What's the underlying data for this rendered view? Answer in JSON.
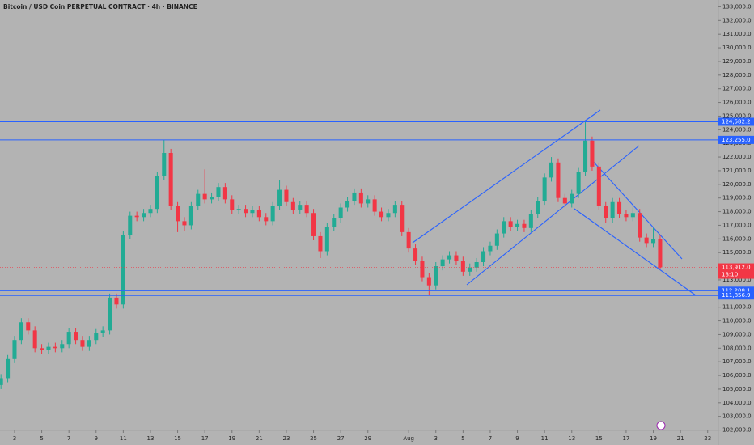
{
  "chart_data": {
    "type": "candlestick",
    "title": "Bitcoin / USD Coin PERPETUAL CONTRACT · 4h · BINANCE",
    "up_color": "#22ab94",
    "down_color": "#f23645",
    "level_color": "#2962ff",
    "last_color": "#f23645",
    "x": [
      2,
      2.5,
      3,
      3.5,
      4,
      4.5,
      5,
      5.5,
      6,
      6.5,
      7,
      7.5,
      8,
      8.5,
      9,
      9.5,
      10,
      10.5,
      11,
      11.5,
      12,
      12.5,
      13,
      13.5,
      14,
      14.5,
      15,
      15.5,
      16,
      16.5,
      17,
      17.5,
      18,
      18.5,
      19,
      19.5,
      20,
      20.5,
      21,
      21.5,
      22,
      22.5,
      23,
      23.5,
      24,
      24.5,
      25,
      25.5,
      26,
      26.5,
      27,
      27.5,
      28,
      28.5,
      29,
      29.5,
      30,
      30.5,
      31,
      31.5,
      32,
      32.5,
      33,
      33.5,
      34,
      34.5,
      35,
      35.5,
      36,
      36.5,
      37,
      37.5,
      38,
      38.5,
      39,
      39.5,
      40,
      40.5,
      41,
      41.5,
      42,
      42.5,
      43,
      43.5,
      44,
      44.5,
      45,
      45.5,
      46,
      46.5,
      47,
      47.5,
      48,
      48.5,
      49,
      49.5,
      50,
      50.5
    ],
    "open": [
      105300,
      105800,
      107200,
      108600,
      109900,
      109300,
      108000,
      107900,
      108100,
      108000,
      108300,
      109200,
      108600,
      108100,
      108600,
      109100,
      109300,
      111700,
      111200,
      116300,
      117700,
      117600,
      117900,
      118200,
      120600,
      122300,
      118400,
      117300,
      117000,
      118400,
      119300,
      118900,
      119100,
      119800,
      118900,
      118100,
      118200,
      117900,
      118100,
      117600,
      117300,
      118400,
      119600,
      118700,
      118100,
      118500,
      117900,
      116200,
      115100,
      116900,
      117500,
      118300,
      118800,
      119400,
      118600,
      118900,
      118000,
      117600,
      117900,
      118500,
      116500,
      115300,
      114400,
      113200,
      112600,
      114000,
      114500,
      114800,
      114400,
      113600,
      113900,
      114300,
      115100,
      115500,
      116400,
      117300,
      116900,
      117100,
      116800,
      117800,
      118800,
      120500,
      121600,
      119000,
      118600,
      119300,
      120900,
      123200,
      121300,
      118400,
      117500,
      118700,
      117800,
      117600,
      117900,
      116100,
      115700,
      116000
    ],
    "high": [
      106100,
      107500,
      108900,
      110200,
      110200,
      109600,
      108300,
      108400,
      108400,
      108600,
      109500,
      109500,
      108900,
      108900,
      109400,
      109600,
      112000,
      112000,
      116600,
      118000,
      118000,
      118200,
      118500,
      120900,
      123255,
      122600,
      118700,
      117600,
      118700,
      119600,
      121100,
      119400,
      120100,
      120100,
      119200,
      118500,
      118500,
      118400,
      118400,
      117900,
      118700,
      120300,
      119900,
      119000,
      118800,
      118800,
      118200,
      116500,
      117200,
      117800,
      118600,
      119100,
      119700,
      119700,
      119200,
      119200,
      118300,
      118200,
      118800,
      118800,
      116800,
      115600,
      114700,
      113500,
      114300,
      114800,
      115100,
      115100,
      114700,
      114200,
      114600,
      115400,
      115800,
      116700,
      117600,
      117600,
      117400,
      117400,
      118100,
      119100,
      120800,
      122000,
      121900,
      119300,
      119600,
      121200,
      124582,
      123500,
      121600,
      118700,
      119000,
      119000,
      118100,
      118300,
      118200,
      116400,
      116800,
      116300
    ],
    "low": [
      105000,
      105500,
      106900,
      108300,
      109000,
      107700,
      107600,
      107600,
      107700,
      107700,
      108000,
      108300,
      107800,
      107800,
      108300,
      108800,
      109000,
      110900,
      110900,
      116000,
      117300,
      117300,
      117600,
      117900,
      120300,
      118100,
      116500,
      116600,
      116700,
      118100,
      118600,
      118600,
      118800,
      118600,
      117800,
      117800,
      117600,
      117600,
      117300,
      117000,
      117000,
      118100,
      118400,
      117800,
      117800,
      117600,
      115900,
      114600,
      114800,
      116600,
      117200,
      118000,
      118500,
      118300,
      118300,
      117700,
      117300,
      117300,
      117600,
      116200,
      115000,
      114100,
      112900,
      111900,
      112300,
      113700,
      114200,
      114100,
      113300,
      113300,
      113600,
      114000,
      114800,
      115200,
      116100,
      116600,
      116600,
      116500,
      116500,
      117500,
      118500,
      120200,
      118700,
      118300,
      118300,
      119000,
      120600,
      121000,
      118100,
      117200,
      117200,
      117500,
      117300,
      117300,
      115800,
      115400,
      115400,
      113800
    ],
    "close": [
      105800,
      107200,
      108600,
      109900,
      109300,
      108000,
      107900,
      108100,
      108000,
      108300,
      109200,
      108600,
      108100,
      108600,
      109100,
      109300,
      111700,
      111200,
      116300,
      117700,
      117600,
      117900,
      118200,
      120600,
      122300,
      118400,
      117300,
      117000,
      118400,
      119300,
      118900,
      119100,
      119800,
      118900,
      118100,
      118200,
      117900,
      118100,
      117600,
      117300,
      118400,
      119600,
      118700,
      118100,
      118500,
      117900,
      116200,
      115100,
      116900,
      117500,
      118300,
      118800,
      119400,
      118600,
      118900,
      118000,
      117600,
      117900,
      118500,
      116500,
      115300,
      114400,
      113200,
      112600,
      114000,
      114500,
      114800,
      114400,
      113600,
      113900,
      114300,
      115100,
      115500,
      116400,
      117300,
      116900,
      117100,
      116800,
      117800,
      118800,
      120500,
      121600,
      119000,
      118600,
      119300,
      120900,
      123200,
      121300,
      118400,
      117500,
      118700,
      117800,
      117600,
      117900,
      116100,
      115700,
      116000,
      113912
    ],
    "xlim": [
      1.93,
      54.79
    ],
    "xticks": [
      3,
      5,
      7,
      9,
      11,
      13,
      15,
      17,
      19,
      21,
      23,
      25,
      27,
      29,
      {
        "value": 32,
        "label": "Aug"
      },
      {
        "value": 34,
        "label": "3"
      },
      {
        "value": 36,
        "label": "5"
      },
      {
        "value": 38,
        "label": "7"
      },
      {
        "value": 40,
        "label": "9"
      },
      {
        "value": 42,
        "label": "11"
      },
      {
        "value": 44,
        "label": "13"
      },
      {
        "value": 46,
        "label": "15"
      },
      {
        "value": 48,
        "label": "17"
      },
      {
        "value": 50,
        "label": "19"
      },
      {
        "value": 52,
        "label": "21"
      },
      {
        "value": 54,
        "label": "23"
      }
    ],
    "ylim": [
      101500,
      133500
    ],
    "yticks": [
      {
        "value": 102000,
        "label": "102,000.0"
      },
      {
        "value": 103000,
        "label": "103,000.0"
      },
      {
        "value": 104000,
        "label": "104,000.0"
      },
      {
        "value": 105000,
        "label": "105,000.0"
      },
      {
        "value": 106000,
        "label": "106,000.0"
      },
      {
        "value": 107000,
        "label": "107,000.0"
      },
      {
        "value": 108000,
        "label": "108,000.0"
      },
      {
        "value": 109000,
        "label": "109,000.0"
      },
      {
        "value": 110000,
        "label": "110,000.0"
      },
      {
        "value": 111000,
        "label": "111,000.0"
      },
      {
        "value": 112000,
        "label": "112,000.0"
      },
      {
        "value": 113000,
        "label": "113,000.0"
      },
      {
        "value": 114000,
        "label": "114,000.0"
      },
      {
        "value": 115000,
        "label": "115,000.0"
      },
      {
        "value": 116000,
        "label": "116,000.0"
      },
      {
        "value": 117000,
        "label": "117,000.0"
      },
      {
        "value": 118000,
        "label": "118,000.0"
      },
      {
        "value": 119000,
        "label": "119,000.0"
      },
      {
        "value": 120000,
        "label": "120,000.0"
      },
      {
        "value": 121000,
        "label": "121,000.0"
      },
      {
        "value": 122000,
        "label": "122,000.0"
      },
      {
        "value": 123000,
        "label": "123,000.0"
      },
      {
        "value": 124000,
        "label": "124,000.0"
      },
      {
        "value": 125000,
        "label": "125,000.0"
      },
      {
        "value": 126000,
        "label": "126,000.0"
      },
      {
        "value": 127000,
        "label": "127,000.0"
      },
      {
        "value": 128000,
        "label": "128,000.0"
      },
      {
        "value": 129000,
        "label": "129,000.0"
      },
      {
        "value": 130000,
        "label": "130,000.0"
      },
      {
        "value": 131000,
        "label": "131,000.0"
      },
      {
        "value": 132000,
        "label": "132,000.0"
      },
      {
        "value": 133000,
        "label": "133,000.0"
      }
    ],
    "levels": [
      {
        "value": 124582.2,
        "label": "124,582.2"
      },
      {
        "value": 123255.0,
        "label": "123,255.0"
      },
      {
        "value": 112208.1,
        "label": "112,208.1"
      },
      {
        "value": 111856.9,
        "label": "111,856.9"
      }
    ],
    "last_price": {
      "value": 113912,
      "label": "113,912.0"
    },
    "countdown": "18:10"
  }
}
